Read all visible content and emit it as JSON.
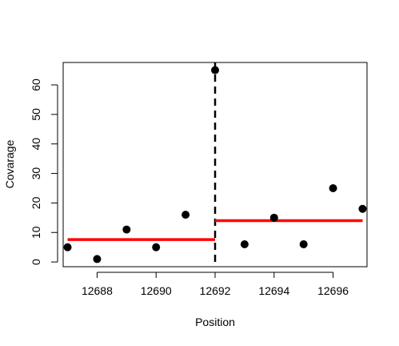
{
  "chart_data": {
    "type": "scatter",
    "xlabel": "Position",
    "ylabel": "Covarage",
    "xlim": [
      12686.85,
      12697.15
    ],
    "ylim": [
      -1.6,
      67.6
    ],
    "xticks": [
      12688,
      12690,
      12692,
      12694,
      12696
    ],
    "yticks": [
      0,
      10,
      20,
      30,
      40,
      50,
      60
    ],
    "points": {
      "x": [
        12687,
        12688,
        12689,
        12690,
        12691,
        12692,
        12693,
        12694,
        12695,
        12696,
        12697
      ],
      "y": [
        5,
        1,
        11,
        5,
        16,
        65,
        6,
        15,
        6,
        25,
        18
      ],
      "color": "#000000"
    },
    "segments": [
      {
        "x0": 12687,
        "x1": 12692,
        "y": 7.6,
        "color": "#ff0000"
      },
      {
        "x0": 12692,
        "x1": 12697,
        "y": 14,
        "color": "#ff0000"
      }
    ],
    "vline": {
      "x": 12692,
      "style": "dashed",
      "color": "#000000"
    },
    "grid": false,
    "legend": "none"
  }
}
